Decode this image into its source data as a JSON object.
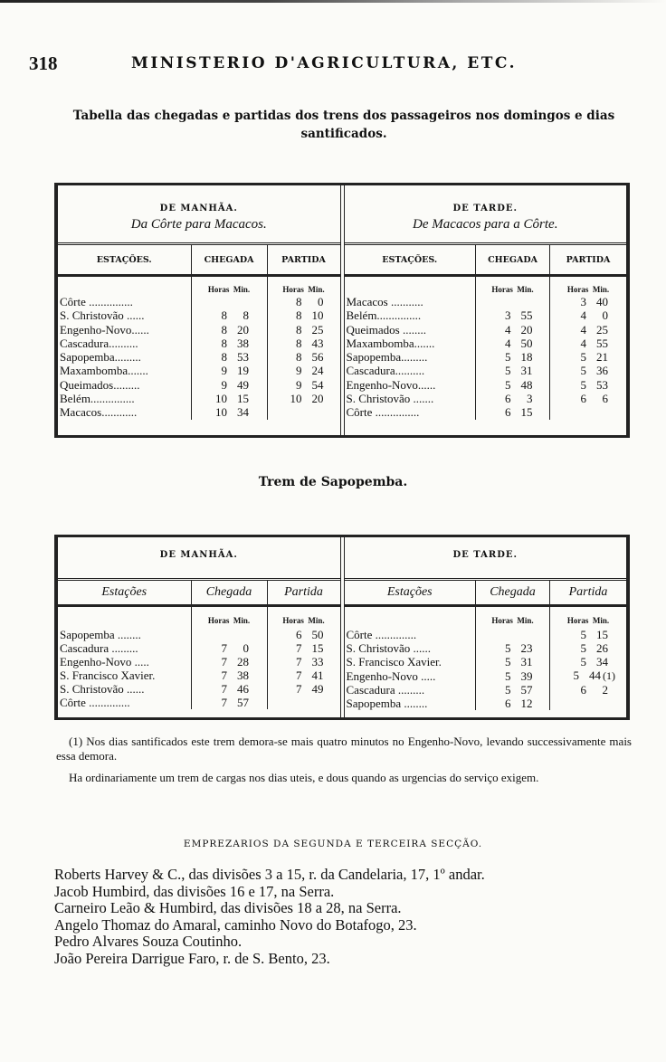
{
  "header": {
    "page_number": "318",
    "running_head": "MINISTERIO D'AGRICULTURA, ETC."
  },
  "caption": "Tabella das chegadas e partidas dos trens dos passageiros nos domingos e dias santificados.",
  "tables": [
    {
      "columns": {
        "station": "ESTAÇÕES.",
        "arrival": "CHEGADA",
        "departure": "PARTIDA"
      },
      "units": {
        "hours": "Horas",
        "minutes": "Min."
      },
      "left": {
        "group": "DE MANHÃA.",
        "direction": "Da Côrte para Macacos.",
        "rows": [
          {
            "station": "Côrte ...............",
            "arrival": [
              "",
              ""
            ],
            "departure": [
              "8",
              "0"
            ]
          },
          {
            "station": "S. Christovão ......",
            "arrival": [
              "8",
              "8"
            ],
            "departure": [
              "8",
              "10"
            ]
          },
          {
            "station": "Engenho-Novo......",
            "arrival": [
              "8",
              "20"
            ],
            "departure": [
              "8",
              "25"
            ]
          },
          {
            "station": "Cascadura..........",
            "arrival": [
              "8",
              "38"
            ],
            "departure": [
              "8",
              "43"
            ]
          },
          {
            "station": "Sapopemba.........",
            "arrival": [
              "8",
              "53"
            ],
            "departure": [
              "8",
              "56"
            ]
          },
          {
            "station": "Maxambomba.......",
            "arrival": [
              "9",
              "19"
            ],
            "departure": [
              "9",
              "24"
            ]
          },
          {
            "station": "Queimados.........",
            "arrival": [
              "9",
              "49"
            ],
            "departure": [
              "9",
              "54"
            ]
          },
          {
            "station": "Belém...............",
            "arrival": [
              "10",
              "15"
            ],
            "departure": [
              "10",
              "20"
            ]
          },
          {
            "station": "Macacos............",
            "arrival": [
              "10",
              "34"
            ],
            "departure": [
              "",
              ""
            ]
          }
        ]
      },
      "right": {
        "group": "DE TARDE.",
        "direction": "De Macacos para a Côrte.",
        "rows": [
          {
            "station": "Macacos ...........",
            "arrival": [
              "",
              ""
            ],
            "departure": [
              "3",
              "40"
            ]
          },
          {
            "station": "Belém...............",
            "arrival": [
              "3",
              "55"
            ],
            "departure": [
              "4",
              "0"
            ]
          },
          {
            "station": "Queimados ........",
            "arrival": [
              "4",
              "20"
            ],
            "departure": [
              "4",
              "25"
            ]
          },
          {
            "station": "Maxambomba.......",
            "arrival": [
              "4",
              "50"
            ],
            "departure": [
              "4",
              "55"
            ]
          },
          {
            "station": "Sapopemba.........",
            "arrival": [
              "5",
              "18"
            ],
            "departure": [
              "5",
              "21"
            ]
          },
          {
            "station": "Cascadura..........",
            "arrival": [
              "5",
              "31"
            ],
            "departure": [
              "5",
              "36"
            ]
          },
          {
            "station": "Engenho-Novo......",
            "arrival": [
              "5",
              "48"
            ],
            "departure": [
              "5",
              "53"
            ]
          },
          {
            "station": "S. Christovão .......",
            "arrival": [
              "6",
              "3"
            ],
            "departure": [
              "6",
              "6"
            ]
          },
          {
            "station": "Côrte ...............",
            "arrival": [
              "6",
              "15"
            ],
            "departure": [
              "",
              ""
            ]
          }
        ]
      }
    },
    {
      "columns": {
        "station": "Estações",
        "arrival": "Chegada",
        "departure": "Partida"
      },
      "units": {
        "hours": "Horas",
        "minutes": "Min."
      },
      "left": {
        "group": "DE MANHÃA.",
        "direction": "",
        "rows": [
          {
            "station": "Sapopemba ........",
            "arrival": [
              "",
              ""
            ],
            "departure": [
              "6",
              "50"
            ]
          },
          {
            "station": "Cascadura .........",
            "arrival": [
              "7",
              "0"
            ],
            "departure": [
              "7",
              "15"
            ]
          },
          {
            "station": "Engenho-Novo .....",
            "arrival": [
              "7",
              "28"
            ],
            "departure": [
              "7",
              "33"
            ]
          },
          {
            "station": "S. Francisco Xavier.",
            "arrival": [
              "7",
              "38"
            ],
            "departure": [
              "7",
              "41"
            ]
          },
          {
            "station": "S. Christovão ......",
            "arrival": [
              "7",
              "46"
            ],
            "departure": [
              "7",
              "49"
            ]
          },
          {
            "station": "Côrte ..............",
            "arrival": [
              "7",
              "57"
            ],
            "departure": [
              "",
              ""
            ]
          }
        ]
      },
      "right": {
        "group": "DE TARDE.",
        "direction": "",
        "rows": [
          {
            "station": "Côrte ..............",
            "arrival": [
              "",
              ""
            ],
            "departure": [
              "5",
              "15"
            ]
          },
          {
            "station": "S. Christovão ......",
            "arrival": [
              "5",
              "23"
            ],
            "departure": [
              "5",
              "26"
            ]
          },
          {
            "station": "S. Francisco Xavier.",
            "arrival": [
              "5",
              "31"
            ],
            "departure": [
              "5",
              "34"
            ]
          },
          {
            "station": "Engenho-Novo .....",
            "arrival": [
              "5",
              "39"
            ],
            "departure": [
              "5",
              "44"
            ],
            "note": "(1)"
          },
          {
            "station": "Cascadura .........",
            "arrival": [
              "5",
              "57"
            ],
            "departure": [
              "6",
              "2"
            ]
          },
          {
            "station": "Sapopemba ........",
            "arrival": [
              "6",
              "12"
            ],
            "departure": [
              "",
              ""
            ]
          }
        ]
      }
    }
  ],
  "subtitle": "Trem de Sapopemba.",
  "footnote": "(1) Nos dias santificados este trem demora-se mais quatro minutos no Engenho-Novo, levando successivamente mais essa demora.",
  "paragraph": "Ha ordinariamente um trem de cargas nos dias uteis, e dous quando as urgencias do serviço exigem.",
  "section_heading": "EMPREZARIOS DA SEGUNDA E TERCEIRA SECÇÃO.",
  "contractors": [
    "Roberts Harvey & C., das divisões 3 a 15, r. da Candelaria, 17, 1º andar.",
    "Jacob Humbird, das divisões 16 e 17, na Serra.",
    "Carneiro Leão & Humbird, das divisões 18 a 28, na Serra.",
    "Angelo Thomaz do Amaral, caminho Novo do Botafogo, 23.",
    "Pedro Alvares Souza Coutinho.",
    "João Pereira Darrigue Faro, r. de S. Bento, 23."
  ]
}
